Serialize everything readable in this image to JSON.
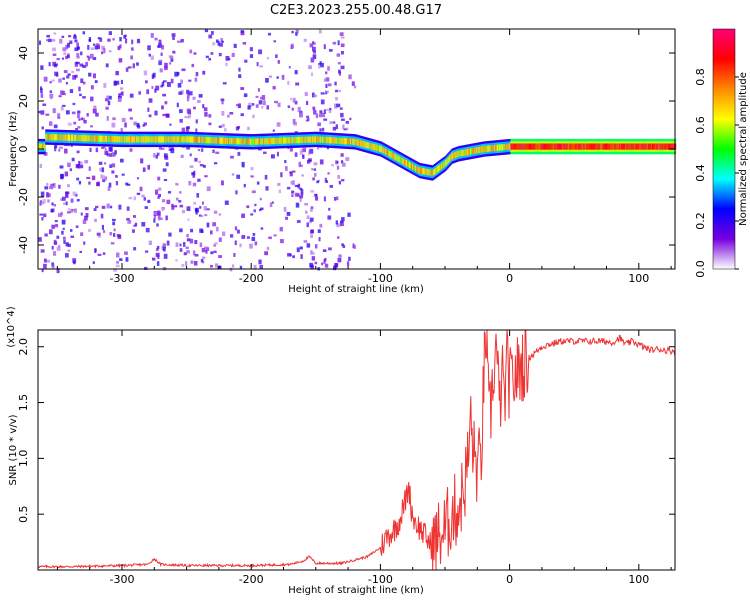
{
  "title": "C2E3.2023.255.00.48.G17",
  "chart_data": [
    {
      "type": "heatmap",
      "xlabel": "Height of straight line (km)",
      "ylabel": "Frequency (Hz)",
      "xlim": [
        -365,
        128
      ],
      "ylim": [
        -50,
        50
      ],
      "xticks": [
        -300,
        -200,
        -100,
        0,
        100
      ],
      "yticks": [
        -40,
        -20,
        0,
        20,
        40
      ],
      "colorbar": {
        "label": "Normalized spectral amplitude",
        "range": [
          0,
          1
        ],
        "ticks": [
          "0.0",
          "0.2",
          "0.4",
          "0.6",
          "0.8"
        ],
        "colors": [
          "#ffffff",
          "#7700dd",
          "#0000ff",
          "#00ffff",
          "#00ff00",
          "#ffff00",
          "#ff8800",
          "#ff0000",
          "#ff0077"
        ]
      },
      "ridge": {
        "x": [
          -360,
          -300,
          -250,
          -200,
          -150,
          -120,
          -100,
          -90,
          -80,
          -70,
          -60,
          -50,
          -45,
          -40,
          -30,
          -20,
          0,
          50,
          100,
          128
        ],
        "y": [
          5,
          4,
          4,
          3,
          4,
          3,
          0,
          -3,
          -6,
          -9,
          -10,
          -6,
          -3,
          -2,
          -1,
          0,
          1,
          1,
          1,
          1
        ]
      },
      "grid": false,
      "legend": "none"
    },
    {
      "type": "line",
      "xlabel": "Height of straight line (km)",
      "ylabel": "SNR (10 * v/v)",
      "yscale_label": "(x10^4)",
      "xlim": [
        -365,
        128
      ],
      "ylim": [
        0,
        2.15
      ],
      "xticks": [
        -300,
        -200,
        -100,
        0,
        100
      ],
      "yticks": [
        0.5,
        1.0,
        1.5,
        2.0
      ],
      "ytick_labels": [
        "0.5",
        "1.0",
        "1.5",
        "2.0"
      ],
      "line_color": "#ee3333",
      "series": [
        {
          "x": [
            -365,
            -340,
            -300,
            -280,
            -275,
            -270,
            -250,
            -200,
            -170,
            -160,
            -155,
            -150,
            -130,
            -110,
            -100,
            -95,
            -90,
            -85,
            -80,
            -78,
            -76,
            -74,
            -72,
            -70,
            -65,
            -60,
            -55,
            -50,
            -45,
            -40,
            -35,
            -32,
            -30,
            -28,
            -25,
            -22,
            -20,
            -18,
            -16,
            -14,
            -12,
            -10,
            -8,
            -6,
            -4,
            -2,
            0,
            5,
            10,
            15,
            20,
            25,
            30,
            40,
            50,
            60,
            70,
            80,
            85,
            90,
            95,
            100,
            105,
            110,
            115,
            120,
            128
          ],
          "y": [
            0.03,
            0.03,
            0.04,
            0.05,
            0.1,
            0.05,
            0.04,
            0.04,
            0.05,
            0.08,
            0.12,
            0.06,
            0.06,
            0.12,
            0.2,
            0.3,
            0.35,
            0.45,
            0.65,
            0.75,
            0.55,
            0.45,
            0.42,
            0.38,
            0.3,
            0.2,
            0.3,
            0.35,
            0.5,
            0.55,
            0.75,
            1.0,
            1.35,
            1.05,
            0.9,
            1.0,
            1.7,
            2.15,
            1.3,
            1.5,
            1.85,
            2.0,
            1.4,
            1.75,
            1.5,
            1.85,
            1.65,
            1.75,
            1.85,
            1.9,
            1.95,
            2.0,
            2.02,
            2.05,
            2.05,
            2.05,
            2.05,
            2.04,
            2.08,
            2.02,
            2.05,
            2.02,
            1.99,
            1.97,
            1.98,
            1.97,
            1.96
          ]
        }
      ],
      "grid": false,
      "legend": "none"
    }
  ]
}
